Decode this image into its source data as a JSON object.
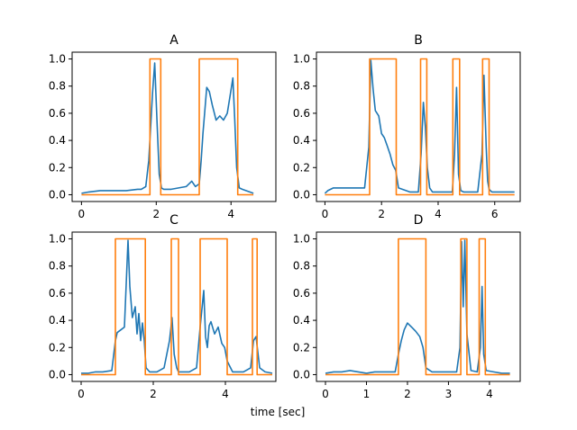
{
  "figure": {
    "xlabel": "time [sec]",
    "colors": {
      "signal": "#1f77b4",
      "mask": "#ff7f0e",
      "axes": "#000000",
      "background": "#ffffff"
    }
  },
  "chart_data": [
    {
      "type": "line",
      "title": "A",
      "xlim": [
        -0.25,
        5.2
      ],
      "ylim": [
        -0.05,
        1.05
      ],
      "xticks": [
        0,
        2,
        4
      ],
      "yticks": [
        0.0,
        0.2,
        0.4,
        0.6,
        0.8,
        1.0
      ],
      "ytick_labels": [
        "0.0",
        "0.2",
        "0.4",
        "0.6",
        "0.8",
        "1.0"
      ],
      "series": [
        {
          "name": "signal",
          "x": [
            0.0,
            0.2,
            0.5,
            1.0,
            1.2,
            1.5,
            1.6,
            1.72,
            1.8,
            1.9,
            1.96,
            2.02,
            2.08,
            2.14,
            2.2,
            2.4,
            2.6,
            2.8,
            2.95,
            3.05,
            3.15,
            3.2,
            3.25,
            3.3,
            3.35,
            3.42,
            3.5,
            3.6,
            3.7,
            3.8,
            3.9,
            4.0,
            4.05,
            4.1,
            4.15,
            4.22,
            4.3,
            4.4,
            4.5,
            4.6
          ],
          "values": [
            0.01,
            0.02,
            0.03,
            0.03,
            0.03,
            0.04,
            0.04,
            0.06,
            0.25,
            0.75,
            0.97,
            0.55,
            0.15,
            0.05,
            0.04,
            0.04,
            0.05,
            0.06,
            0.1,
            0.06,
            0.08,
            0.25,
            0.45,
            0.62,
            0.79,
            0.76,
            0.66,
            0.55,
            0.58,
            0.55,
            0.6,
            0.77,
            0.86,
            0.55,
            0.2,
            0.05,
            0.04,
            0.03,
            0.02,
            0.01
          ]
        },
        {
          "name": "mask",
          "x": [
            0.0,
            1.83,
            1.83,
            2.12,
            2.12,
            3.15,
            3.15,
            4.18,
            4.18,
            4.6
          ],
          "values": [
            0,
            0,
            1,
            1,
            0,
            0,
            1,
            1,
            0,
            0
          ]
        }
      ]
    },
    {
      "type": "line",
      "title": "B",
      "xlim": [
        -0.3,
        6.9
      ],
      "ylim": [
        -0.05,
        1.05
      ],
      "xticks": [
        0,
        2,
        4,
        6
      ],
      "yticks": [
        0.0,
        0.2,
        0.4,
        0.6,
        0.8,
        1.0
      ],
      "ytick_labels": [
        "0.0",
        "0.2",
        "0.4",
        "0.6",
        "0.8",
        "1.0"
      ],
      "series": [
        {
          "name": "signal",
          "x": [
            0.0,
            0.1,
            0.3,
            0.6,
            1.0,
            1.4,
            1.55,
            1.62,
            1.7,
            1.78,
            1.9,
            2.0,
            2.1,
            2.2,
            2.3,
            2.4,
            2.5,
            2.6,
            3.0,
            3.3,
            3.4,
            3.48,
            3.55,
            3.62,
            3.7,
            3.8,
            4.0,
            4.3,
            4.5,
            4.58,
            4.65,
            4.72,
            4.8,
            4.9,
            5.1,
            5.4,
            5.55,
            5.62,
            5.7,
            5.75,
            5.8,
            5.9,
            6.2,
            6.5,
            6.7
          ],
          "values": [
            0.01,
            0.03,
            0.05,
            0.05,
            0.05,
            0.05,
            0.35,
            0.99,
            0.78,
            0.62,
            0.58,
            0.45,
            0.42,
            0.36,
            0.3,
            0.22,
            0.18,
            0.05,
            0.02,
            0.02,
            0.3,
            0.68,
            0.5,
            0.2,
            0.05,
            0.02,
            0.02,
            0.02,
            0.02,
            0.3,
            0.79,
            0.15,
            0.03,
            0.02,
            0.02,
            0.02,
            0.3,
            0.88,
            0.35,
            0.1,
            0.04,
            0.02,
            0.02,
            0.02,
            0.02
          ]
        },
        {
          "name": "mask",
          "x": [
            0.0,
            1.58,
            1.58,
            2.52,
            2.52,
            3.38,
            3.38,
            3.6,
            3.6,
            4.52,
            4.52,
            4.76,
            4.76,
            5.57,
            5.57,
            5.8,
            5.8,
            6.7
          ],
          "values": [
            0,
            0,
            1,
            1,
            0,
            0,
            1,
            1,
            0,
            0,
            1,
            1,
            0,
            0,
            1,
            1,
            0,
            0
          ]
        }
      ]
    },
    {
      "type": "line",
      "title": "C",
      "xlim": [
        -0.25,
        5.4
      ],
      "ylim": [
        -0.05,
        1.05
      ],
      "xticks": [
        0,
        2,
        4
      ],
      "yticks": [
        0.0,
        0.2,
        0.4,
        0.6,
        0.8,
        1.0
      ],
      "ytick_labels": [
        "0.0",
        "0.2",
        "0.4",
        "0.6",
        "0.8",
        "1.0"
      ],
      "series": [
        {
          "name": "signal",
          "x": [
            0.0,
            0.2,
            0.4,
            0.6,
            0.85,
            0.95,
            1.0,
            1.1,
            1.2,
            1.3,
            1.35,
            1.42,
            1.5,
            1.55,
            1.6,
            1.65,
            1.7,
            1.75,
            1.8,
            1.9,
            2.1,
            2.3,
            2.45,
            2.52,
            2.58,
            2.65,
            2.7,
            2.8,
            3.0,
            3.2,
            3.3,
            3.4,
            3.45,
            3.5,
            3.55,
            3.6,
            3.7,
            3.8,
            3.9,
            3.98,
            4.05,
            4.2,
            4.5,
            4.7,
            4.78,
            4.85,
            4.95,
            5.1,
            5.3
          ],
          "values": [
            0.01,
            0.01,
            0.02,
            0.02,
            0.03,
            0.25,
            0.31,
            0.33,
            0.35,
            0.99,
            0.65,
            0.42,
            0.5,
            0.3,
            0.45,
            0.25,
            0.38,
            0.25,
            0.05,
            0.02,
            0.02,
            0.05,
            0.25,
            0.42,
            0.15,
            0.05,
            0.02,
            0.02,
            0.02,
            0.05,
            0.35,
            0.62,
            0.28,
            0.2,
            0.36,
            0.39,
            0.3,
            0.35,
            0.23,
            0.2,
            0.1,
            0.02,
            0.02,
            0.05,
            0.25,
            0.28,
            0.05,
            0.02,
            0.01
          ]
        },
        {
          "name": "mask",
          "x": [
            0.0,
            0.95,
            0.95,
            1.78,
            1.78,
            2.5,
            2.5,
            2.7,
            2.7,
            3.3,
            3.3,
            4.05,
            4.05,
            4.75,
            4.75,
            4.88,
            4.88,
            5.3
          ],
          "values": [
            0,
            0,
            1,
            1,
            0,
            0,
            1,
            1,
            0,
            0,
            1,
            1,
            0,
            0,
            1,
            1,
            0,
            0
          ]
        }
      ]
    },
    {
      "type": "line",
      "title": "D",
      "xlim": [
        -0.22,
        4.75
      ],
      "ylim": [
        -0.05,
        1.05
      ],
      "xticks": [
        0,
        1,
        2,
        3,
        4
      ],
      "yticks": [
        0.0,
        0.2,
        0.4,
        0.6,
        0.8,
        1.0
      ],
      "ytick_labels": [
        "0.0",
        "0.2",
        "0.4",
        "0.6",
        "0.8",
        "1.0"
      ],
      "series": [
        {
          "name": "signal",
          "x": [
            0.0,
            0.2,
            0.4,
            0.6,
            0.8,
            1.0,
            1.2,
            1.4,
            1.6,
            1.7,
            1.78,
            1.85,
            1.92,
            2.0,
            2.1,
            2.2,
            2.3,
            2.38,
            2.45,
            2.6,
            2.8,
            3.0,
            3.2,
            3.28,
            3.32,
            3.36,
            3.4,
            3.45,
            3.55,
            3.7,
            3.78,
            3.82,
            3.86,
            3.92,
            4.1,
            4.3,
            4.5
          ],
          "values": [
            0.01,
            0.02,
            0.02,
            0.03,
            0.02,
            0.01,
            0.02,
            0.02,
            0.02,
            0.02,
            0.15,
            0.25,
            0.33,
            0.38,
            0.35,
            0.32,
            0.28,
            0.2,
            0.05,
            0.02,
            0.02,
            0.02,
            0.02,
            0.2,
            0.98,
            0.5,
            0.99,
            0.3,
            0.03,
            0.02,
            0.2,
            0.65,
            0.15,
            0.03,
            0.02,
            0.01,
            0.01
          ]
        },
        {
          "name": "mask",
          "x": [
            0.0,
            1.78,
            1.78,
            2.45,
            2.45,
            3.3,
            3.3,
            3.45,
            3.45,
            3.75,
            3.75,
            3.9,
            3.9,
            4.5
          ],
          "values": [
            0,
            0,
            1,
            1,
            0,
            0,
            1,
            1,
            0,
            0,
            1,
            1,
            0,
            0
          ]
        }
      ]
    }
  ]
}
